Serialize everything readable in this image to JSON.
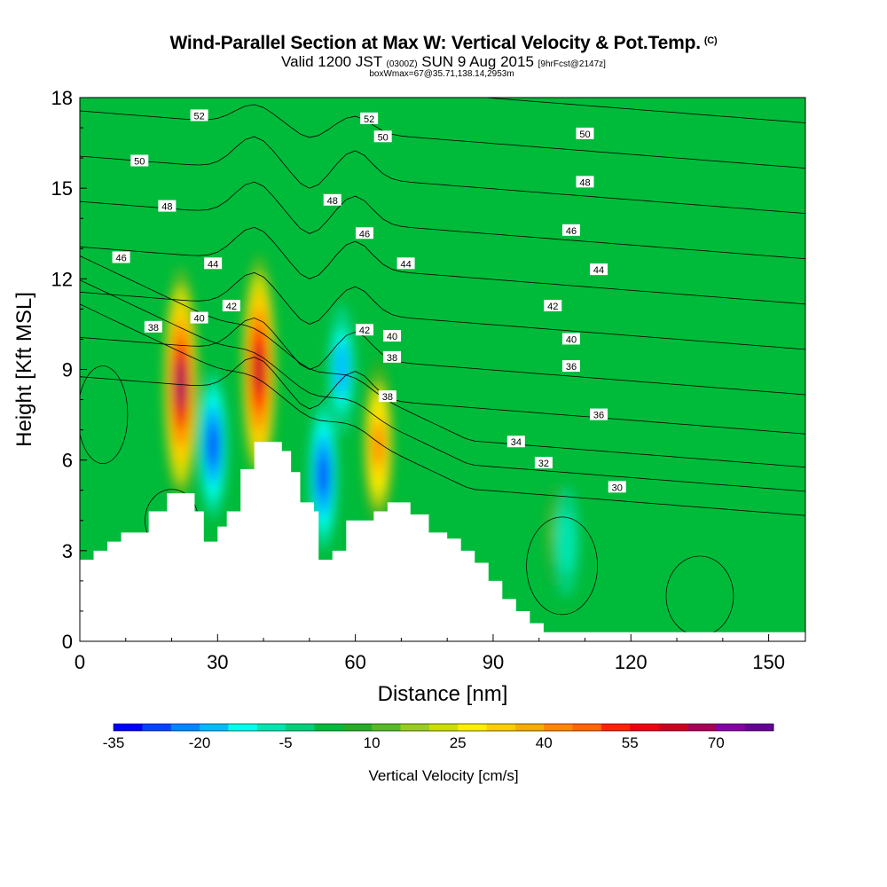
{
  "chart_data": {
    "type": "heatmap",
    "title": "Wind-Parallel Section at Max W: Vertical Velocity & Pot.Temp.",
    "title_units": "(C)",
    "subtitle_main_a": "Valid 1200 JST",
    "subtitle_time_small": "(0300Z)",
    "subtitle_main_b": "SUN 9 Aug 2015",
    "subtitle_fcst": "[9hrFcst@2147z]",
    "subtitle_box": "boxWmax=67@35.71,138.14,2953m",
    "xlabel": "Distance [nm]",
    "ylabel": "Height [Kft MSL]",
    "xlim": [
      0,
      158
    ],
    "ylim": [
      0,
      18
    ],
    "xticks": [
      "0",
      "30",
      "60",
      "90",
      "120",
      "150"
    ],
    "yticks": [
      "0",
      "3",
      "6",
      "9",
      "12",
      "15",
      "18"
    ],
    "colorbar": {
      "label": "Vertical Velocity [cm/s]",
      "ticks": [
        "-35",
        "-20",
        "-5",
        "10",
        "25",
        "40",
        "55",
        "70"
      ],
      "min": -40,
      "max": 85,
      "colors": [
        "#0000ff",
        "#0044ff",
        "#0088ff",
        "#00bbff",
        "#00ffee",
        "#00e6b0",
        "#00d07a",
        "#00bb3a",
        "#22b022",
        "#55bb22",
        "#99cc22",
        "#ccdd00",
        "#ffee00",
        "#ffcc00",
        "#ffaa00",
        "#ff8800",
        "#ff6600",
        "#ff2200",
        "#ee0011",
        "#cc0022",
        "#aa0055",
        "#8800aa",
        "#660099"
      ]
    },
    "background_w": 0,
    "vertical_velocity_features": [
      {
        "x": 22,
        "z": 8.5,
        "w": 70
      },
      {
        "x": 39,
        "z": 9.0,
        "w": 67
      },
      {
        "x": 65,
        "z": 6.5,
        "w": 42
      },
      {
        "x": 29,
        "z": 6.5,
        "w": -30
      },
      {
        "x": 53,
        "z": 5.5,
        "w": -32
      },
      {
        "x": 57,
        "z": 9.0,
        "w": -22
      },
      {
        "x": 104,
        "z": 3.5,
        "w": 15
      },
      {
        "x": 106,
        "z": 3.3,
        "w": -12
      }
    ],
    "terrain_profile_kft": [
      [
        0,
        2.7
      ],
      [
        3,
        3.0
      ],
      [
        6,
        3.3
      ],
      [
        9,
        3.6
      ],
      [
        15,
        4.3
      ],
      [
        19,
        4.9
      ],
      [
        25,
        4.3
      ],
      [
        27,
        3.3
      ],
      [
        30,
        3.8
      ],
      [
        32,
        4.3
      ],
      [
        35,
        5.7
      ],
      [
        38,
        6.6
      ],
      [
        44,
        6.3
      ],
      [
        46,
        5.6
      ],
      [
        48,
        4.6
      ],
      [
        51,
        4.3
      ],
      [
        52,
        2.7
      ],
      [
        55,
        3.0
      ],
      [
        58,
        4.0
      ],
      [
        64,
        4.3
      ],
      [
        67,
        4.6
      ],
      [
        72,
        4.2
      ],
      [
        76,
        3.6
      ],
      [
        80,
        3.4
      ],
      [
        83,
        3.0
      ],
      [
        86,
        2.6
      ],
      [
        89,
        2.0
      ],
      [
        92,
        1.4
      ],
      [
        95,
        1.0
      ],
      [
        98,
        0.6
      ],
      [
        101,
        0.3
      ],
      [
        158,
        0.3
      ]
    ],
    "isentropes": [
      {
        "value": 30,
        "label": "30"
      },
      {
        "value": 32,
        "label": "32"
      },
      {
        "value": 34,
        "label": "34"
      },
      {
        "value": 36,
        "label": "36"
      },
      {
        "value": 38,
        "label": "38"
      },
      {
        "value": 40,
        "label": "40"
      },
      {
        "value": 42,
        "label": "42"
      },
      {
        "value": 44,
        "label": "44"
      },
      {
        "value": 46,
        "label": "46"
      },
      {
        "value": 48,
        "label": "48"
      },
      {
        "value": 50,
        "label": "50"
      },
      {
        "value": 52,
        "label": "52"
      }
    ],
    "contour_labels": [
      {
        "text": "52",
        "x": 26,
        "z": 17.4
      },
      {
        "text": "52",
        "x": 63,
        "z": 17.3
      },
      {
        "text": "50",
        "x": 13,
        "z": 15.9
      },
      {
        "text": "50",
        "x": 66,
        "z": 16.7
      },
      {
        "text": "50",
        "x": 110,
        "z": 16.8
      },
      {
        "text": "48",
        "x": 19,
        "z": 14.4
      },
      {
        "text": "48",
        "x": 55,
        "z": 14.6
      },
      {
        "text": "48",
        "x": 110,
        "z": 15.2
      },
      {
        "text": "46",
        "x": 9,
        "z": 12.7
      },
      {
        "text": "46",
        "x": 62,
        "z": 13.5
      },
      {
        "text": "46",
        "x": 107,
        "z": 13.6
      },
      {
        "text": "44",
        "x": 29,
        "z": 12.5
      },
      {
        "text": "44",
        "x": 71,
        "z": 12.5
      },
      {
        "text": "44",
        "x": 113,
        "z": 12.3
      },
      {
        "text": "42",
        "x": 33,
        "z": 11.1
      },
      {
        "text": "42",
        "x": 62,
        "z": 10.3
      },
      {
        "text": "42",
        "x": 103,
        "z": 11.1
      },
      {
        "text": "40",
        "x": 26,
        "z": 10.7
      },
      {
        "text": "40",
        "x": 68,
        "z": 10.1
      },
      {
        "text": "40",
        "x": 107,
        "z": 10.0
      },
      {
        "text": "38",
        "x": 16,
        "z": 10.4
      },
      {
        "text": "38",
        "x": 68,
        "z": 9.4
      },
      {
        "text": "38",
        "x": 67,
        "z": 8.1
      },
      {
        "text": "36",
        "x": 107,
        "z": 9.1
      },
      {
        "text": "36",
        "x": 113,
        "z": 7.5
      },
      {
        "text": "34",
        "x": 95,
        "z": 6.6
      },
      {
        "text": "32",
        "x": 101,
        "z": 5.9
      },
      {
        "text": "30",
        "x": 117,
        "z": 5.1
      }
    ]
  }
}
